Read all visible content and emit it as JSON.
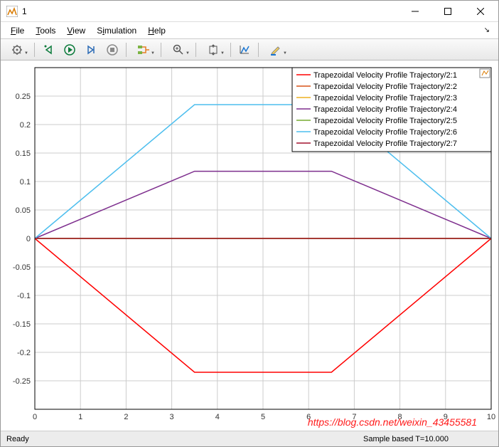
{
  "window": {
    "title": "1"
  },
  "menu": {
    "items": [
      "File",
      "Tools",
      "View",
      "Simulation",
      "Help"
    ]
  },
  "chart": {
    "type": "line",
    "background_color": "#ffffff",
    "grid_color": "#cccccc",
    "axis_color": "#000000",
    "tick_fontsize": 11,
    "xlim": [
      0,
      10
    ],
    "ylim": [
      -0.3,
      0.3
    ],
    "xtick_step": 1,
    "yticks": [
      -0.25,
      -0.2,
      -0.15,
      -0.1,
      -0.05,
      0,
      0.05,
      0.1,
      0.15,
      0.2,
      0.25
    ],
    "line_width": 1.5,
    "series": [
      {
        "label": "Trapezoidal Velocity Profile Trajectory/2:1",
        "color": "#ff0000",
        "points": [
          [
            0,
            0
          ],
          [
            3.5,
            -0.235
          ],
          [
            6.5,
            -0.235
          ],
          [
            10,
            0
          ]
        ]
      },
      {
        "label": "Trapezoidal Velocity Profile Trajectory/2:2",
        "color": "#d95319",
        "points": [
          [
            0,
            0
          ],
          [
            10,
            0
          ]
        ]
      },
      {
        "label": "Trapezoidal Velocity Profile Trajectory/2:3",
        "color": "#edb120",
        "points": [
          [
            0,
            0
          ],
          [
            10,
            0
          ]
        ]
      },
      {
        "label": "Trapezoidal Velocity Profile Trajectory/2:4",
        "color": "#7e2f8e",
        "points": [
          [
            0,
            0
          ],
          [
            3.5,
            0.118
          ],
          [
            6.5,
            0.118
          ],
          [
            10,
            0
          ]
        ]
      },
      {
        "label": "Trapezoidal Velocity Profile Trajectory/2:5",
        "color": "#77ac30",
        "points": [
          [
            0,
            0
          ],
          [
            10,
            0
          ]
        ]
      },
      {
        "label": "Trapezoidal Velocity Profile Trajectory/2:6",
        "color": "#4dbeee",
        "points": [
          [
            0,
            0
          ],
          [
            3.5,
            0.235
          ],
          [
            6.5,
            0.235
          ],
          [
            10,
            0
          ]
        ]
      },
      {
        "label": "Trapezoidal Velocity Profile Trajectory/2:7",
        "color": "#a2142f",
        "points": [
          [
            0,
            0
          ],
          [
            10,
            0
          ]
        ]
      }
    ],
    "legend": {
      "position": "top-right",
      "background": "#ffffff",
      "border": "#000000"
    }
  },
  "status": {
    "left": "Ready",
    "right": "Sample based  T=10.000"
  },
  "watermark": "https://blog.csdn.net/weixin_43455581"
}
